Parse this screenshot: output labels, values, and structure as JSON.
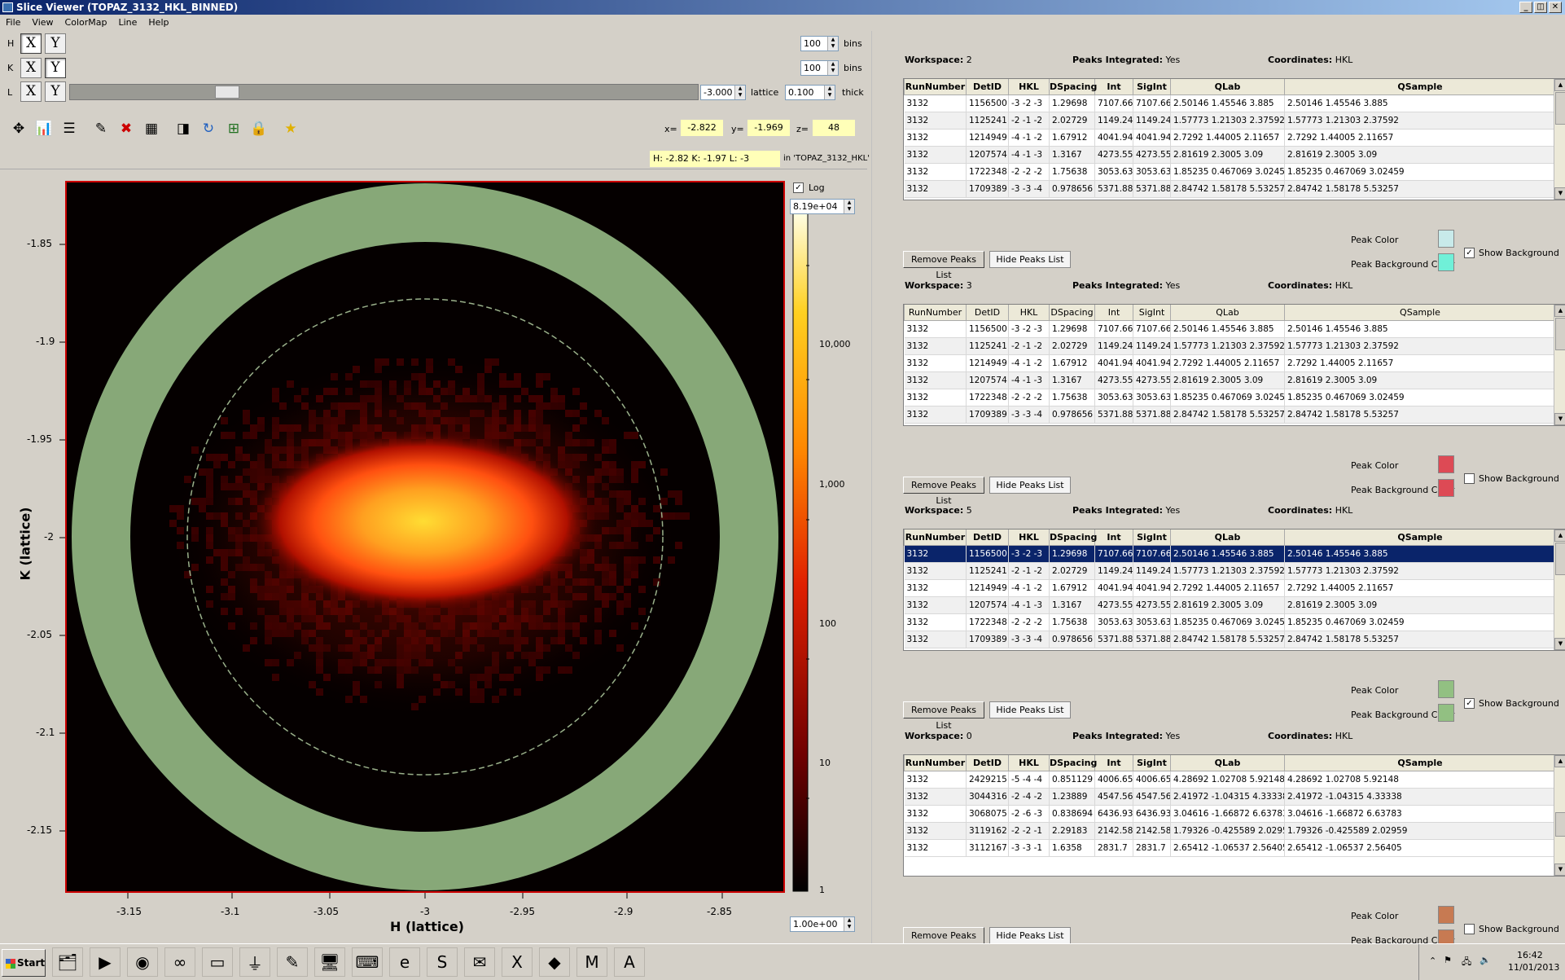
{
  "window": {
    "title": "Slice Viewer (TOPAZ_3132_HKL_BINNED)",
    "controls": {
      "minimize": "_",
      "restore": "◫",
      "close": "✕"
    }
  },
  "menu": [
    "File",
    "View",
    "ColorMap",
    "Line",
    "Help"
  ],
  "dims": [
    {
      "label": "H",
      "x": "X",
      "y": "Y",
      "active": "X",
      "bins": "100",
      "bins_label": "bins"
    },
    {
      "label": "K",
      "x": "X",
      "y": "Y",
      "active": "Y",
      "bins": "100",
      "bins_label": "bins"
    },
    {
      "label": "L",
      "x": "X",
      "y": "Y",
      "active": "none",
      "slice_value": "-3.000",
      "slice_unit": "lattice",
      "thickness": "0.100",
      "thickness_label": "thick",
      "slider_fraction": 0.24
    }
  ],
  "toolbar_icons": [
    "zoom-icon",
    "graph-icon",
    "table-icon",
    "pencil-icon",
    "delete-icon",
    "grid-icon",
    "peaks-icon",
    "refresh-icon",
    "rebin-icon",
    "lock-icon",
    "star-icon"
  ],
  "cursor": {
    "x_label": "x=",
    "x": "-2.822",
    "y_label": "y=",
    "y": "-1.969",
    "z_label": "z=",
    "z": "48",
    "hkl": "H: -2.82    K: -1.97    L: -3",
    "ws_label": "in 'TOPAZ_3132_HKL'"
  },
  "colorbar": {
    "log_label": "Log",
    "log_checked": true,
    "max": "8.19e+04",
    "min": "1.00e+00",
    "ticks": [
      "10,000",
      "1,000",
      "100",
      "10",
      "1"
    ]
  },
  "plot": {
    "x_ticks": [
      "-3.15",
      "-3.1",
      "-3.05",
      "-3",
      "-2.95",
      "-2.9",
      "-2.85"
    ],
    "y_ticks": [
      "-1.85",
      "-1.9",
      "-1.95",
      "-2",
      "-2.05",
      "-2.1",
      "-2.15"
    ],
    "xlabel": "H (lattice)",
    "ylabel": "K (lattice)",
    "ring_color": "#87a878"
  },
  "peak_headers": [
    "RunNumber",
    "DetID",
    "HKL",
    "DSpacing",
    "Int",
    "SigInt",
    "QLab",
    "QSample"
  ],
  "workspaces": [
    {
      "ws_label": "Workspace:",
      "ws": "2",
      "pi_label": "Peaks Integrated:",
      "pi": "Yes",
      "coord_label": "Coordinates:",
      "coord": "HKL",
      "rows": [
        [
          "3132",
          "1156500",
          "-3 -2 -3",
          "1.29698",
          "7107.66",
          "7107.66",
          "2.50146 1.45546 3.885",
          "2.50146 1.45546 3.885"
        ],
        [
          "3132",
          "1125241",
          "-2 -1 -2",
          "2.02729",
          "1149.24",
          "1149.24",
          "1.57773 1.21303 2.37592",
          "1.57773 1.21303 2.37592"
        ],
        [
          "3132",
          "1214949",
          "-4 -1 -2",
          "1.67912",
          "4041.94",
          "4041.94",
          "2.7292 1.44005 2.11657",
          "2.7292 1.44005 2.11657"
        ],
        [
          "3132",
          "1207574",
          "-4 -1 -3",
          "1.3167",
          "4273.55",
          "4273.55",
          "2.81619 2.3005 3.09",
          "2.81619 2.3005 3.09"
        ],
        [
          "3132",
          "1722348",
          "-2 -2 -2",
          "1.75638",
          "3053.63",
          "3053.63",
          "1.85235 0.467069 3.02459",
          "1.85235 0.467069 3.02459"
        ],
        [
          "3132",
          "1709389",
          "-3 -3 -4",
          "0.978656",
          "5371.88",
          "5371.88",
          "2.84742 1.58178 5.53257",
          "2.84742 1.58178 5.53257"
        ]
      ],
      "remove": "Remove Peaks List",
      "hide": "Hide Peaks List",
      "peak_color_label": "Peak Color",
      "peak_color": "#c8eaea",
      "bg_color_label": "Peak Background Color",
      "bg_color": "#70f0d8",
      "show_bg_label": "Show Background",
      "show_bg": true
    },
    {
      "ws_label": "Workspace:",
      "ws": "3",
      "pi_label": "Peaks Integrated:",
      "pi": "Yes",
      "coord_label": "Coordinates:",
      "coord": "HKL",
      "rows": [
        [
          "3132",
          "1156500",
          "-3 -2 -3",
          "1.29698",
          "7107.66",
          "7107.66",
          "2.50146 1.45546 3.885",
          "2.50146 1.45546 3.885"
        ],
        [
          "3132",
          "1125241",
          "-2 -1 -2",
          "2.02729",
          "1149.24",
          "1149.24",
          "1.57773 1.21303 2.37592",
          "1.57773 1.21303 2.37592"
        ],
        [
          "3132",
          "1214949",
          "-4 -1 -2",
          "1.67912",
          "4041.94",
          "4041.94",
          "2.7292 1.44005 2.11657",
          "2.7292 1.44005 2.11657"
        ],
        [
          "3132",
          "1207574",
          "-4 -1 -3",
          "1.3167",
          "4273.55",
          "4273.55",
          "2.81619 2.3005 3.09",
          "2.81619 2.3005 3.09"
        ],
        [
          "3132",
          "1722348",
          "-2 -2 -2",
          "1.75638",
          "3053.63",
          "3053.63",
          "1.85235 0.467069 3.02459",
          "1.85235 0.467069 3.02459"
        ],
        [
          "3132",
          "1709389",
          "-3 -3 -4",
          "0.978656",
          "5371.88",
          "5371.88",
          "2.84742 1.58178 5.53257",
          "2.84742 1.58178 5.53257"
        ]
      ],
      "remove": "Remove Peaks List",
      "hide": "Hide Peaks List",
      "peak_color_label": "Peak Color",
      "peak_color": "#dd4a55",
      "bg_color_label": "Peak Background Color",
      "bg_color": "#dd4a55",
      "show_bg_label": "Show Background",
      "show_bg": false
    },
    {
      "ws_label": "Workspace:",
      "ws": "5",
      "pi_label": "Peaks Integrated:",
      "pi": "Yes",
      "coord_label": "Coordinates:",
      "coord": "HKL",
      "rows": [
        [
          "3132",
          "1156500",
          "-3 -2 -3",
          "1.29698",
          "7107.66",
          "7107.66",
          "2.50146 1.45546 3.885",
          "2.50146 1.45546 3.885"
        ],
        [
          "3132",
          "1125241",
          "-2 -1 -2",
          "2.02729",
          "1149.24",
          "1149.24",
          "1.57773 1.21303 2.37592",
          "1.57773 1.21303 2.37592"
        ],
        [
          "3132",
          "1214949",
          "-4 -1 -2",
          "1.67912",
          "4041.94",
          "4041.94",
          "2.7292 1.44005 2.11657",
          "2.7292 1.44005 2.11657"
        ],
        [
          "3132",
          "1207574",
          "-4 -1 -3",
          "1.3167",
          "4273.55",
          "4273.55",
          "2.81619 2.3005 3.09",
          "2.81619 2.3005 3.09"
        ],
        [
          "3132",
          "1722348",
          "-2 -2 -2",
          "1.75638",
          "3053.63",
          "3053.63",
          "1.85235 0.467069 3.02459",
          "1.85235 0.467069 3.02459"
        ],
        [
          "3132",
          "1709389",
          "-3 -3 -4",
          "0.978656",
          "5371.88",
          "5371.88",
          "2.84742 1.58178 5.53257",
          "2.84742 1.58178 5.53257"
        ]
      ],
      "remove": "Remove Peaks List",
      "hide": "Hide Peaks List",
      "peak_color_label": "Peak Color",
      "peak_color": "#92c082",
      "bg_color_label": "Peak Background Color",
      "bg_color": "#92c082",
      "show_bg_label": "Show Background",
      "show_bg": true
    },
    {
      "ws_label": "Workspace:",
      "ws": "0",
      "pi_label": "Peaks Integrated:",
      "pi": "Yes",
      "coord_label": "Coordinates:",
      "coord": "HKL",
      "rows": [
        [
          "3132",
          "2429215",
          "-5 -4 -4",
          "0.851129",
          "4006.65",
          "4006.65",
          "4.28692 1.02708 5.92148",
          "4.28692 1.02708 5.92148"
        ],
        [
          "3132",
          "3044316",
          "-2 -4 -2",
          "1.23889",
          "4547.56",
          "4547.56",
          "2.41972 -1.04315 4.33338",
          "2.41972 -1.04315 4.33338"
        ],
        [
          "3132",
          "3068075",
          "-2 -6 -3",
          "0.838694",
          "6436.93",
          "6436.93",
          "3.04616 -1.66872 6.63783",
          "3.04616 -1.66872 6.63783"
        ],
        [
          "3132",
          "3119162",
          "-2 -2 -1",
          "2.29183",
          "2142.58",
          "2142.58",
          "1.79326 -0.425589 2.02959",
          "1.79326 -0.425589 2.02959"
        ],
        [
          "3132",
          "3112167",
          "-3 -3 -1",
          "1.6358",
          "2831.7",
          "2831.7",
          "2.65412 -1.06537 2.56405",
          "2.65412 -1.06537 2.56405"
        ]
      ],
      "remove": "Remove Peaks List",
      "hide": "Hide Peaks List",
      "peak_color_label": "Peak Color",
      "peak_color": "#c77a52",
      "bg_color_label": "Peak Background Color",
      "bg_color": "#c77a52",
      "show_bg_label": "Show Background",
      "show_bg": false
    }
  ],
  "taskbar": {
    "start": "Start",
    "time": "16:42",
    "date": "11/01/2013",
    "apps": [
      "explorer-icon",
      "media-player-icon",
      "chrome-icon",
      "vs-icon",
      "cmd-icon",
      "python-icon",
      "notepad-icon",
      "network-icon",
      "terminal-icon",
      "ie-icon",
      "skype-icon",
      "outlook-icon",
      "excel-icon",
      "paint-icon",
      "mantid-icon",
      "acrobat-icon"
    ]
  }
}
